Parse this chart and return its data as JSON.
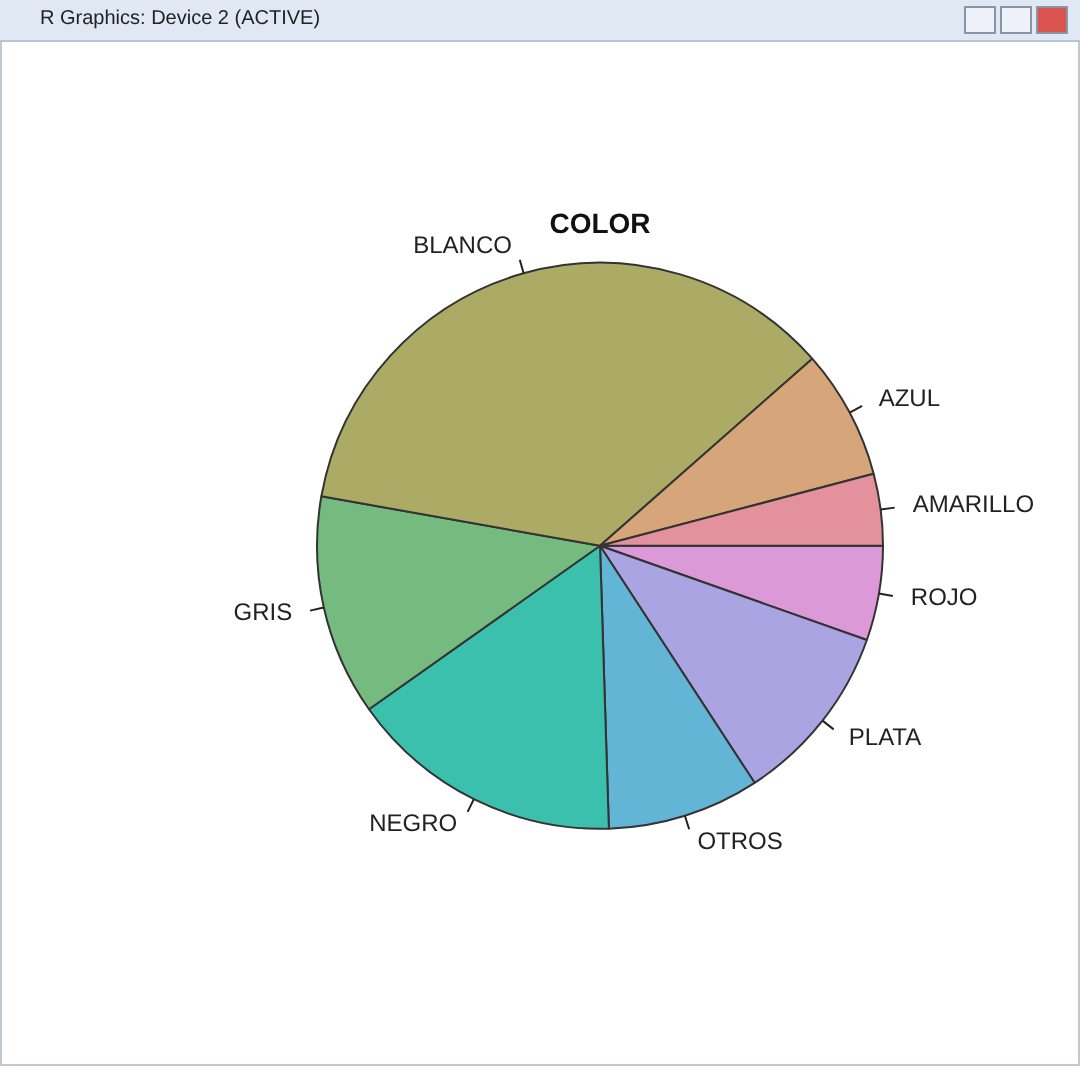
{
  "chart_data": {
    "type": "pie",
    "title": "COLOR",
    "annotations": [
      "R Graphics: Device 2 (ACTIVE)"
    ],
    "categories": [
      "AMARILLO",
      "AZUL",
      "BLANCO",
      "GRIS",
      "NEGRO",
      "OTROS",
      "PLATA",
      "ROJO"
    ],
    "values": [
      4.1,
      7.4,
      35.7,
      12.6,
      15.7,
      8.7,
      10.4,
      5.4
    ],
    "colors": [
      "#e3919c",
      "#d6a57a",
      "#abab66",
      "#75bb7f",
      "#3cc0ae",
      "#63b5d6",
      "#aaa4e3",
      "#db99d8"
    ],
    "legend": false
  }
}
